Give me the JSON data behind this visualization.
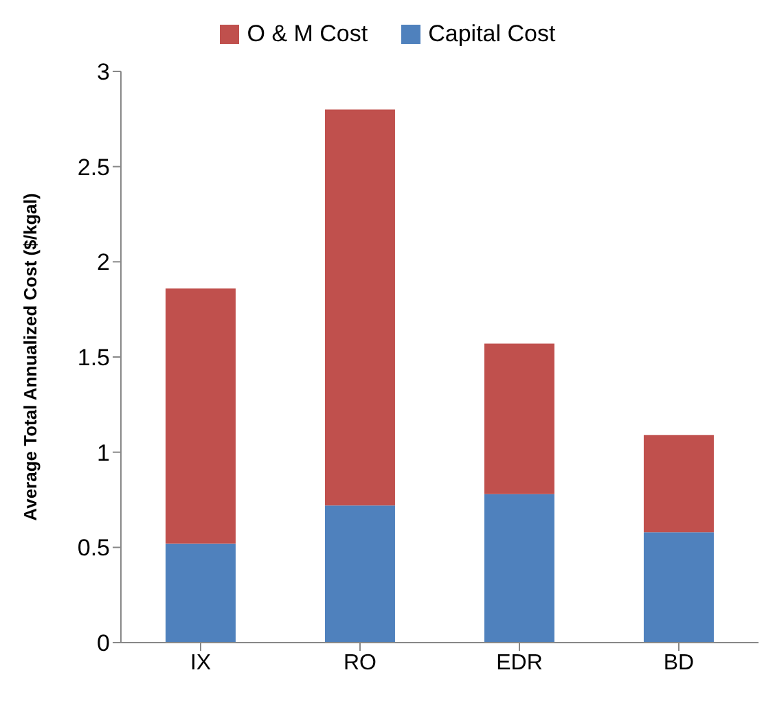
{
  "chart_data": {
    "type": "bar",
    "stacked": true,
    "ylabel": "Average Total Annualized Cost ($/kgal)",
    "categories": [
      "IX",
      "RO",
      "EDR",
      "BD"
    ],
    "series": [
      {
        "name": "Capital Cost",
        "color": "#4f81bd",
        "values": [
          0.52,
          0.72,
          0.78,
          0.58
        ]
      },
      {
        "name": "O & M Cost",
        "color": "#c0504d",
        "values": [
          1.34,
          2.08,
          0.79,
          0.51
        ]
      }
    ],
    "ylim": [
      0,
      3
    ],
    "yticks": [
      0,
      0.5,
      1,
      1.5,
      2,
      2.5,
      3
    ],
    "grid": false,
    "legend": "top"
  }
}
